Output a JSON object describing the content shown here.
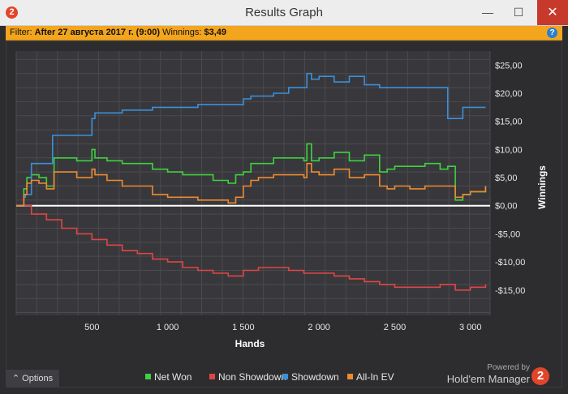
{
  "window": {
    "title": "Results Graph",
    "app_icon": "2",
    "minimize_glyph": "—",
    "maximize_glyph": "☐",
    "close_glyph": "✕"
  },
  "filter": {
    "label": "Filter:",
    "value": "After 27 августа 2017 г. (9:00)",
    "winnings_label": "Winnings:",
    "winnings_value": "$3,49",
    "help_glyph": "?"
  },
  "footer": {
    "options_label": "⌃  Options",
    "powered_by": "Powered by",
    "brand_name": "Hold'em Manager",
    "brand_number": "2"
  },
  "chart_data": {
    "type": "line",
    "xlabel": "Hands",
    "ylabel": "Winnings",
    "xlim": [
      0,
      3130
    ],
    "ylim": [
      -19.5,
      27.5
    ],
    "x_ticks": [
      500,
      1000,
      1500,
      2000,
      2500,
      3000
    ],
    "x_tick_labels": [
      "500",
      "1 000",
      "1 500",
      "2 000",
      "2 500",
      "3 000"
    ],
    "y_ticks": [
      25,
      20,
      15,
      10,
      5,
      0,
      -5,
      -10,
      -15
    ],
    "y_tick_labels": [
      "$25,00",
      "$20,00",
      "$15,00",
      "$10,00",
      "$5,00",
      "$0,00",
      "-$5,00",
      "-$10,00",
      "-$15,00"
    ],
    "grid": true,
    "legend_position": "bottom",
    "series": [
      {
        "name": "Net Won",
        "color": "#3fd13f",
        "x": [
          0,
          50,
          70,
          100,
          150,
          200,
          250,
          300,
          400,
          500,
          520,
          600,
          700,
          800,
          900,
          1000,
          1100,
          1200,
          1300,
          1400,
          1450,
          1500,
          1550,
          1600,
          1700,
          1800,
          1900,
          1920,
          1950,
          2000,
          2100,
          2200,
          2300,
          2400,
          2450,
          2500,
          2600,
          2700,
          2800,
          2850,
          2900,
          2950,
          3000,
          3100
        ],
        "y": [
          0,
          3.0,
          5.0,
          5.5,
          5.0,
          3.5,
          8.5,
          8.5,
          8.0,
          10.0,
          8.5,
          8.0,
          7.5,
          7.5,
          6.5,
          6.0,
          5.5,
          5.5,
          4.5,
          4.0,
          5.5,
          6.0,
          7.5,
          7.5,
          8.5,
          8.5,
          8.0,
          11.0,
          8.0,
          8.5,
          9.5,
          8.0,
          9.0,
          6.0,
          6.5,
          7.0,
          7.0,
          7.5,
          6.5,
          7.0,
          1.0,
          2.0,
          2.5,
          3.5
        ]
      },
      {
        "name": "Non Showdown",
        "color": "#e04545",
        "x": [
          0,
          100,
          200,
          300,
          400,
          500,
          600,
          700,
          800,
          900,
          1000,
          1100,
          1200,
          1300,
          1400,
          1500,
          1600,
          1700,
          1800,
          1900,
          2000,
          2100,
          2200,
          2300,
          2400,
          2500,
          2600,
          2700,
          2800,
          2900,
          3000,
          3100
        ],
        "y": [
          0,
          -1.5,
          -2.5,
          -4.0,
          -5.0,
          -6.0,
          -7.0,
          -8.0,
          -8.5,
          -9.5,
          -10.0,
          -11.0,
          -11.5,
          -12.0,
          -12.5,
          -11.5,
          -11.0,
          -11.0,
          -11.5,
          -12.0,
          -12.0,
          -12.5,
          -13.0,
          -13.5,
          -14.0,
          -14.5,
          -14.5,
          -14.5,
          -14.0,
          -15.0,
          -14.5,
          -14.0
        ]
      },
      {
        "name": "Showdown",
        "color": "#3b8fd9",
        "x": [
          0,
          50,
          60,
          100,
          150,
          230,
          240,
          400,
          500,
          520,
          600,
          700,
          800,
          900,
          1000,
          1100,
          1200,
          1300,
          1400,
          1500,
          1550,
          1600,
          1700,
          1800,
          1900,
          1920,
          1950,
          2000,
          2100,
          2200,
          2300,
          2400,
          2500,
          2600,
          2700,
          2800,
          2840,
          2850,
          2950,
          3000,
          3100
        ],
        "y": [
          0,
          1.5,
          2.0,
          7.5,
          7.5,
          7.5,
          12.5,
          12.5,
          15.5,
          16.5,
          16.5,
          17.0,
          17.0,
          17.5,
          17.5,
          17.5,
          18.0,
          18.0,
          18.0,
          19.0,
          19.5,
          19.5,
          20.0,
          21.0,
          21.0,
          23.5,
          22.5,
          23.0,
          22.0,
          23.0,
          21.5,
          21.0,
          21.0,
          21.0,
          21.0,
          21.0,
          21.0,
          15.5,
          17.5,
          17.5,
          17.5
        ]
      },
      {
        "name": "All-In EV",
        "color": "#f08a2e",
        "x": [
          0,
          50,
          70,
          100,
          150,
          200,
          250,
          300,
          400,
          500,
          520,
          600,
          700,
          800,
          900,
          1000,
          1100,
          1200,
          1300,
          1400,
          1450,
          1500,
          1550,
          1600,
          1700,
          1800,
          1900,
          1920,
          1950,
          2000,
          2100,
          2200,
          2300,
          2400,
          2450,
          2500,
          2600,
          2700,
          2800,
          2850,
          2900,
          2950,
          3000,
          3100
        ],
        "y": [
          0,
          2.0,
          4.0,
          4.5,
          4.0,
          3.0,
          6.0,
          6.0,
          5.0,
          6.5,
          5.5,
          4.5,
          3.5,
          3.5,
          2.0,
          1.5,
          1.5,
          1.0,
          1.0,
          0.5,
          1.5,
          3.5,
          4.5,
          5.0,
          5.5,
          5.5,
          5.0,
          7.5,
          6.0,
          5.5,
          6.5,
          5.0,
          5.5,
          3.5,
          3.0,
          3.5,
          3.0,
          3.5,
          3.5,
          3.5,
          1.5,
          2.0,
          2.5,
          3.5
        ]
      }
    ]
  }
}
